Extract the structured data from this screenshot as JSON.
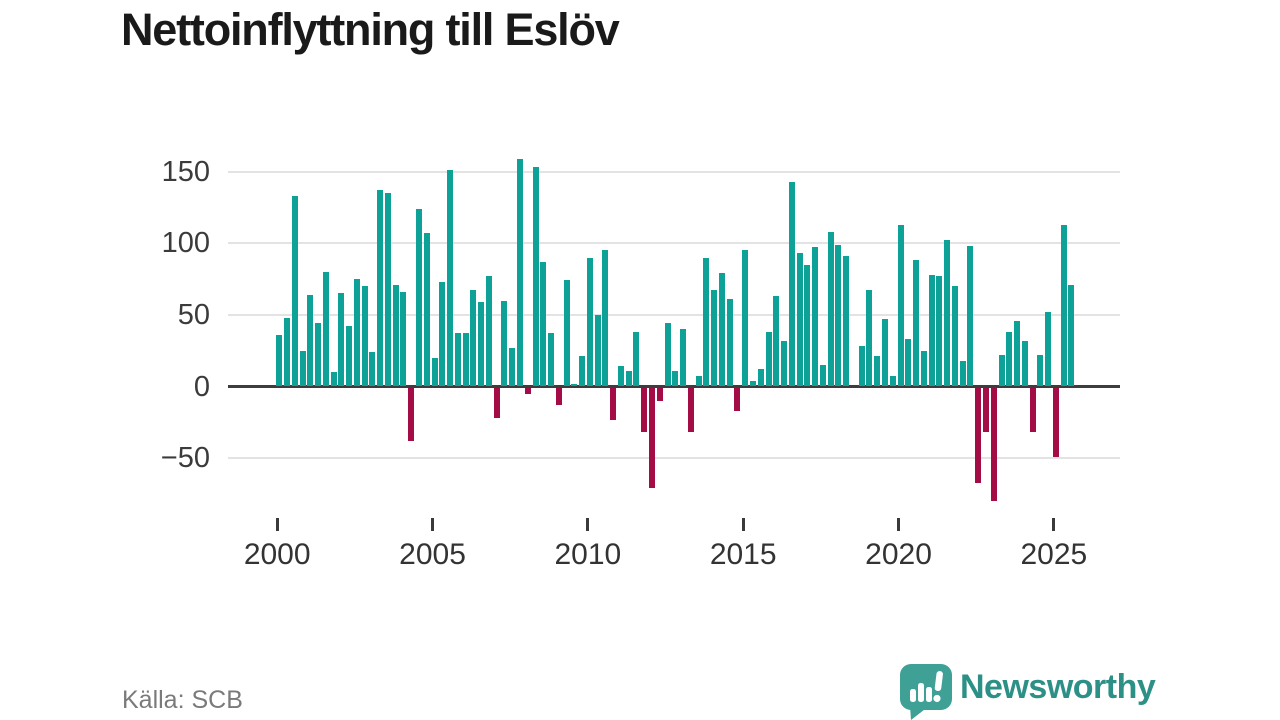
{
  "title": "Nettoinflyttning till Eslöv",
  "source": "Källa: SCB",
  "logo": {
    "text": "Newsworthy"
  },
  "chart_data": {
    "type": "bar",
    "title": "Nettoinflyttning till Eslöv",
    "x_start": "2000 Q1",
    "x_end": "2025 Q3",
    "frequency": "quarterly",
    "grid": true,
    "ylim": [
      -85,
      165
    ],
    "y_tick_values": [
      150,
      100,
      50,
      0,
      -50
    ],
    "y_tick_labels": [
      "150",
      "100",
      "50",
      "0",
      "−50"
    ],
    "x_tick_labels": [
      "2000",
      "2005",
      "2010",
      "2015",
      "2020",
      "2025"
    ],
    "colors": {
      "positive": "#0da197",
      "negative": "#a30c45"
    },
    "values": [
      36,
      48,
      133,
      25,
      64,
      44,
      80,
      10,
      65,
      42,
      75,
      70,
      24,
      137,
      135,
      71,
      66,
      -37,
      124,
      107,
      20,
      73,
      151,
      37,
      37,
      67,
      59,
      77,
      -21,
      60,
      27,
      159,
      -4,
      153,
      87,
      37,
      -12,
      74,
      2,
      21,
      90,
      50,
      95,
      -22,
      14,
      11,
      38,
      -31,
      -70,
      -9,
      44,
      11,
      40,
      -31,
      7,
      90,
      67,
      79,
      61,
      -16,
      95,
      4,
      12,
      38,
      63,
      32,
      143,
      93,
      85,
      97,
      15,
      108,
      99,
      91,
      0,
      28,
      67,
      21,
      47,
      7,
      113,
      33,
      88,
      25,
      78,
      77,
      102,
      70,
      18,
      98,
      -66,
      -31,
      -79,
      22,
      38,
      46,
      32,
      -31,
      22,
      52,
      -48,
      113,
      71
    ]
  }
}
